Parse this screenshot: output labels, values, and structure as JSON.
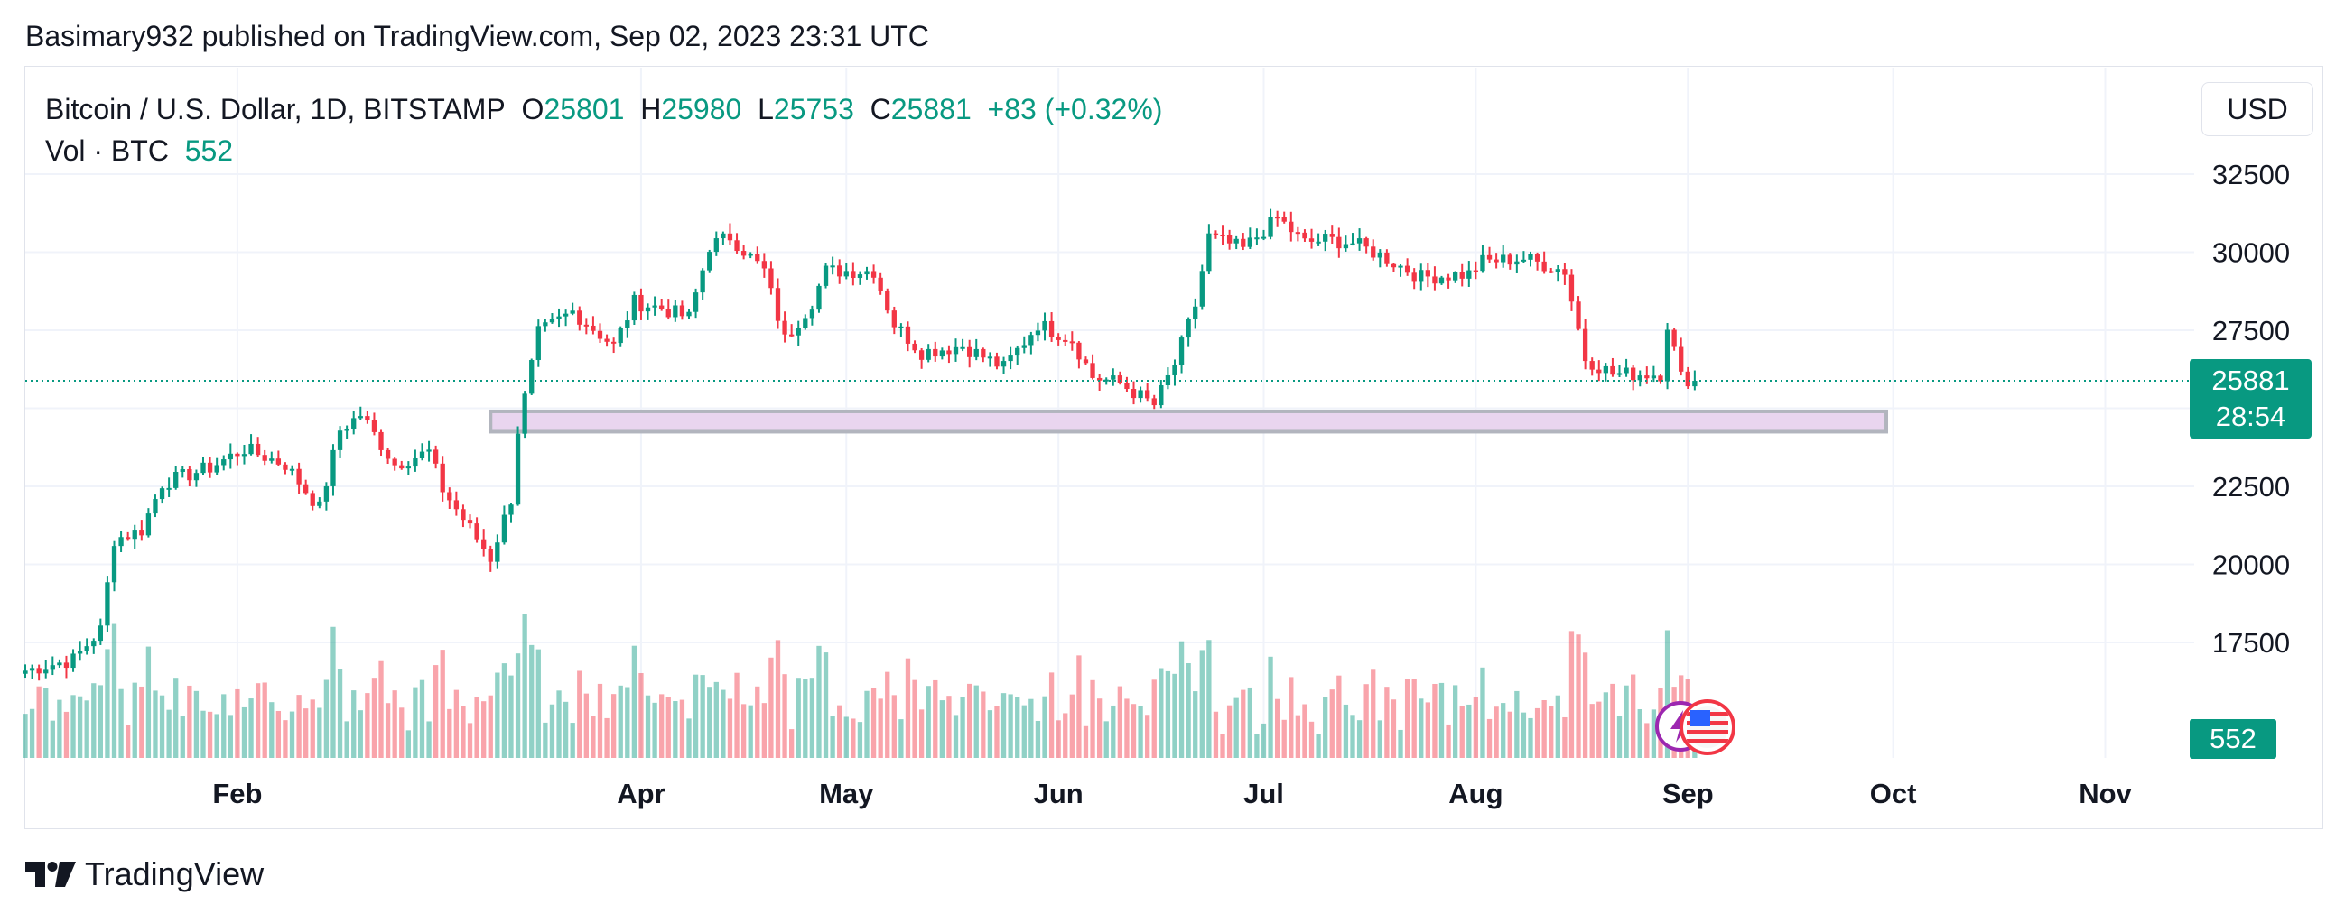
{
  "publisher": "Basimary932 published on TradingView.com, Sep 02, 2023 23:31 UTC",
  "legend": {
    "symbol": "Bitcoin / U.S. Dollar, 1D, BITSTAMP",
    "open_label": "O",
    "open": "25801",
    "high_label": "H",
    "high": "25980",
    "low_label": "L",
    "low": "25753",
    "close_label": "C",
    "close": "25881",
    "change": "+83 (+0.32%)",
    "vol_label": "Vol · BTC",
    "vol_value": "552"
  },
  "currency": "USD",
  "price_badge": {
    "price": "25881",
    "countdown": "28:54"
  },
  "volume_badge": "552",
  "footer": {
    "brand": "TradingView"
  },
  "colors": {
    "up": "#089981",
    "down": "#f23645",
    "zone_fill": "#e9d5ef",
    "zone_border": "#b2b5be"
  },
  "chart_data": {
    "type": "candlestick",
    "symbol": "BTCUSD",
    "interval": "1D",
    "y_ticks": [
      17500,
      20000,
      22500,
      25000,
      27500,
      30000,
      32500
    ],
    "y_tick_labels": [
      "17500",
      "20000",
      "22500",
      "",
      "27500",
      "30000",
      "32500"
    ],
    "ylim": [
      15000,
      33500
    ],
    "x_ticks": [
      {
        "date": "2023-02-01",
        "label": "Feb"
      },
      {
        "date": "2023-04-01",
        "label": "Apr"
      },
      {
        "date": "2023-05-01",
        "label": "May"
      },
      {
        "date": "2023-06-01",
        "label": "Jun"
      },
      {
        "date": "2023-07-01",
        "label": "Jul"
      },
      {
        "date": "2023-08-01",
        "label": "Aug"
      },
      {
        "date": "2023-09-01",
        "label": "Sep"
      },
      {
        "date": "2023-10-01",
        "label": "Oct"
      },
      {
        "date": "2023-11-01",
        "label": "Nov"
      }
    ],
    "x_start": "2023-01-01",
    "x_end": "2023-11-14",
    "last_price": 25881,
    "support_zone": {
      "from": "2023-03-10",
      "to": "2023-09-30",
      "low": 24250,
      "high": 24900
    },
    "price_waypoints": [
      [
        "2023-01-01",
        16600
      ],
      [
        "2023-01-08",
        16950
      ],
      [
        "2023-01-12",
        17900
      ],
      [
        "2023-01-14",
        20800
      ],
      [
        "2023-01-18",
        21100
      ],
      [
        "2023-01-21",
        22600
      ],
      [
        "2023-01-28",
        23100
      ],
      [
        "2023-02-02",
        23700
      ],
      [
        "2023-02-08",
        23200
      ],
      [
        "2023-02-13",
        21800
      ],
      [
        "2023-02-16",
        24300
      ],
      [
        "2023-02-19",
        24800
      ],
      [
        "2023-02-24",
        23200
      ],
      [
        "2023-03-01",
        23600
      ],
      [
        "2023-03-03",
        22400
      ],
      [
        "2023-03-10",
        20200
      ],
      [
        "2023-03-13",
        22100
      ],
      [
        "2023-03-14",
        24300
      ],
      [
        "2023-03-17",
        27400
      ],
      [
        "2023-03-22",
        28100
      ],
      [
        "2023-03-28",
        27000
      ],
      [
        "2023-03-31",
        28400
      ],
      [
        "2023-04-04",
        28200
      ],
      [
        "2023-04-08",
        27900
      ],
      [
        "2023-04-11",
        30200
      ],
      [
        "2023-04-14",
        30500
      ],
      [
        "2023-04-19",
        29400
      ],
      [
        "2023-04-22",
        27200
      ],
      [
        "2023-04-26",
        28400
      ],
      [
        "2023-04-28",
        29400
      ],
      [
        "2023-05-05",
        29400
      ],
      [
        "2023-05-08",
        27700
      ],
      [
        "2023-05-12",
        26800
      ],
      [
        "2023-05-18",
        27000
      ],
      [
        "2023-05-24",
        26300
      ],
      [
        "2023-05-29",
        27700
      ],
      [
        "2023-06-03",
        27200
      ],
      [
        "2023-06-06",
        26000
      ],
      [
        "2023-06-10",
        25800
      ],
      [
        "2023-06-15",
        25100
      ],
      [
        "2023-06-18",
        26400
      ],
      [
        "2023-06-21",
        28300
      ],
      [
        "2023-06-23",
        30500
      ],
      [
        "2023-06-28",
        30100
      ],
      [
        "2023-07-03",
        31100
      ],
      [
        "2023-07-07",
        30300
      ],
      [
        "2023-07-10",
        30400
      ],
      [
        "2023-07-14",
        30300
      ],
      [
        "2023-07-18",
        29900
      ],
      [
        "2023-07-24",
        29200
      ],
      [
        "2023-07-31",
        29300
      ],
      [
        "2023-08-02",
        29700
      ],
      [
        "2023-08-08",
        29800
      ],
      [
        "2023-08-14",
        29400
      ],
      [
        "2023-08-17",
        26600
      ],
      [
        "2023-08-21",
        26100
      ],
      [
        "2023-08-28",
        26100
      ],
      [
        "2023-08-29",
        27700
      ],
      [
        "2023-08-31",
        26000
      ],
      [
        "2023-09-02",
        25881
      ]
    ]
  }
}
